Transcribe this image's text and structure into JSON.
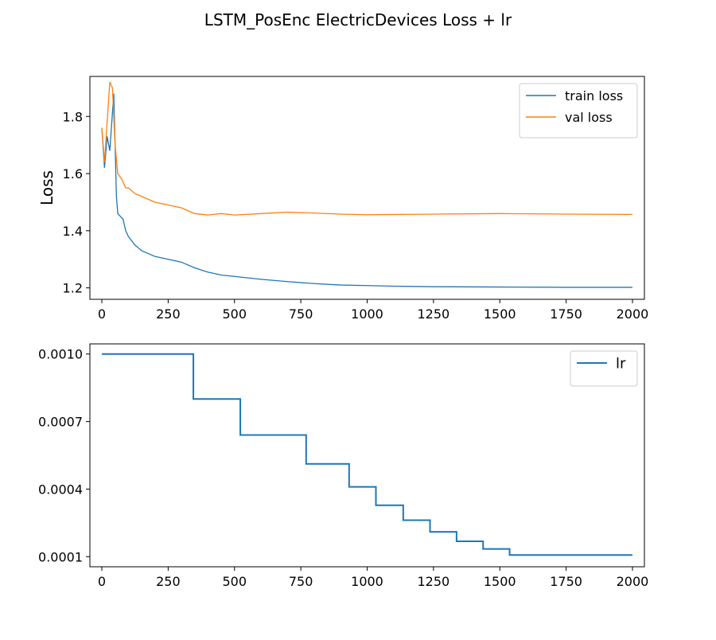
{
  "figure": {
    "title": "LSTM_PosEnc ElectricDevices Loss + lr"
  },
  "chart_data": [
    {
      "type": "line",
      "ylabel": "Loss",
      "xlim": [
        -45,
        2045
      ],
      "ylim": [
        1.16,
        1.94
      ],
      "xticks": [
        0,
        250,
        500,
        750,
        1000,
        1250,
        1500,
        1750,
        2000
      ],
      "xtick_labels": [
        "0",
        "250",
        "500",
        "750",
        "1000",
        "1250",
        "1500",
        "1750",
        "2000"
      ],
      "yticks": [
        1.2,
        1.4,
        1.6,
        1.8
      ],
      "ytick_labels": [
        "1.2",
        "1.4",
        "1.6",
        "1.8"
      ],
      "grid": false,
      "legend": "top-right",
      "series": [
        {
          "name": "train loss",
          "color": "#1f77b4",
          "x": [
            0,
            10,
            20,
            30,
            45,
            55,
            60,
            80,
            90,
            100,
            125,
            150,
            175,
            200,
            250,
            300,
            350,
            400,
            450,
            500,
            600,
            700,
            800,
            900,
            1000,
            1100,
            1250,
            1500,
            1750,
            2000
          ],
          "y": [
            1.76,
            1.62,
            1.73,
            1.68,
            1.88,
            1.52,
            1.46,
            1.44,
            1.4,
            1.38,
            1.35,
            1.33,
            1.32,
            1.31,
            1.3,
            1.29,
            1.27,
            1.255,
            1.245,
            1.24,
            1.23,
            1.222,
            1.215,
            1.21,
            1.208,
            1.206,
            1.204,
            1.203,
            1.202,
            1.202
          ]
        },
        {
          "name": "val loss",
          "color": "#ff7f0e",
          "x": [
            0,
            10,
            20,
            30,
            40,
            50,
            60,
            75,
            90,
            100,
            125,
            150,
            175,
            200,
            250,
            300,
            350,
            400,
            450,
            500,
            600,
            700,
            800,
            900,
            1000,
            1250,
            1500,
            1750,
            2000
          ],
          "y": [
            1.76,
            1.64,
            1.78,
            1.92,
            1.9,
            1.7,
            1.6,
            1.58,
            1.55,
            1.55,
            1.53,
            1.52,
            1.51,
            1.5,
            1.49,
            1.48,
            1.46,
            1.455,
            1.46,
            1.455,
            1.46,
            1.465,
            1.462,
            1.458,
            1.456,
            1.458,
            1.46,
            1.458,
            1.457
          ]
        }
      ]
    },
    {
      "type": "line",
      "ylabel": "",
      "xlim": [
        -45,
        2045
      ],
      "ylim": [
        5.5e-05,
        0.001045
      ],
      "xticks": [
        0,
        250,
        500,
        750,
        1000,
        1250,
        1500,
        1750,
        2000
      ],
      "xtick_labels": [
        "0",
        "250",
        "500",
        "750",
        "1000",
        "1250",
        "1500",
        "1750",
        "2000"
      ],
      "yticks": [
        0.0001,
        0.0004,
        0.0007,
        0.001
      ],
      "ytick_labels": [
        "0.0001",
        "0.0004",
        "0.0007",
        "0.0010"
      ],
      "grid": false,
      "legend": "top-right",
      "series": [
        {
          "name": "lr",
          "color": "#1f77b4",
          "step": true,
          "x": [
            0,
            345,
            345,
            522,
            522,
            770,
            770,
            932,
            932,
            1033,
            1033,
            1136,
            1136,
            1237,
            1237,
            1337,
            1337,
            1437,
            1437,
            1537,
            1537,
            2000
          ],
          "y": [
            0.001,
            0.001,
            0.0008,
            0.0008,
            0.00064,
            0.00064,
            0.000512,
            0.000512,
            0.00041,
            0.00041,
            0.000328,
            0.000328,
            0.000262,
            0.000262,
            0.00021,
            0.00021,
            0.000168,
            0.000168,
            0.000134,
            0.000134,
            0.000107,
            0.000107
          ]
        }
      ]
    }
  ]
}
